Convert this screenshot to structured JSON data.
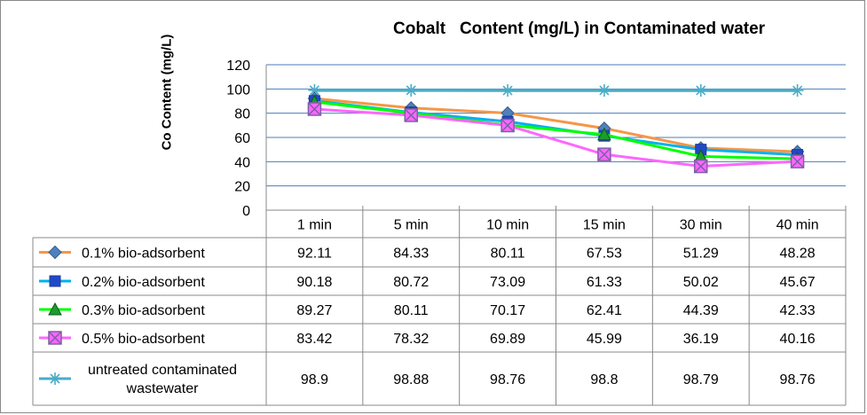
{
  "chart_data": {
    "type": "line",
    "title": "Cobalt   Content (mg/L) in Contaminated water",
    "ylabel": "Co Content (mg/L)",
    "xlabel": "",
    "ylim": [
      0,
      120
    ],
    "yticks": [
      0,
      20,
      40,
      60,
      80,
      100,
      120
    ],
    "grid": true,
    "legend": "data-table-left",
    "categories": [
      "1 min",
      "5 min",
      "10 min",
      "15 min",
      "30 min",
      "40 min"
    ],
    "series": [
      {
        "name": "0.1% bio-adsorbent",
        "color": "#F79646",
        "marker_color": "#4F81BD",
        "marker": "diamond",
        "labels": [
          "92.11",
          "84.33",
          "80.11",
          "67.53",
          "51.29",
          "48.28"
        ],
        "values": [
          92.11,
          84.33,
          80.11,
          67.53,
          51.29,
          48.28
        ]
      },
      {
        "name": "0.2% bio-adsorbent",
        "color": "#00B0F0",
        "marker_color": "#1F49C8",
        "marker": "square",
        "labels": [
          "90.18",
          "80.72",
          "73.09",
          "61.33",
          "50.02",
          "45.67"
        ],
        "values": [
          90.18,
          80.72,
          73.09,
          61.33,
          50.02,
          45.67
        ]
      },
      {
        "name": "0.3% bio-adsorbent",
        "color": "#00FF00",
        "marker_color": "#1F9A2E",
        "marker": "triangle",
        "labels": [
          "89.27",
          "80.11",
          "70.17",
          "62.41",
          "44.39",
          "42.33"
        ],
        "values": [
          89.27,
          80.11,
          70.17,
          62.41,
          44.39,
          42.33
        ]
      },
      {
        "name": "0.5% bio-adsorbent",
        "color": "#FF66FF",
        "marker_color": "#7F5FA7",
        "marker": "x-square",
        "labels": [
          "83.42",
          "78.32",
          "69.89",
          "45.99",
          "36.19",
          "40.16"
        ],
        "values": [
          83.42,
          78.32,
          69.89,
          45.99,
          36.19,
          40.16
        ]
      },
      {
        "name_lines": [
          "untreated contaminated",
          "wastewater"
        ],
        "color": "#4BACC6",
        "marker_color": "#4BACC6",
        "marker": "star",
        "labels": [
          "98.9",
          "98.88",
          "98.76",
          "98.8",
          "98.79",
          "98.76"
        ],
        "values": [
          98.9,
          98.88,
          98.76,
          98.8,
          98.79,
          98.76
        ]
      }
    ]
  }
}
